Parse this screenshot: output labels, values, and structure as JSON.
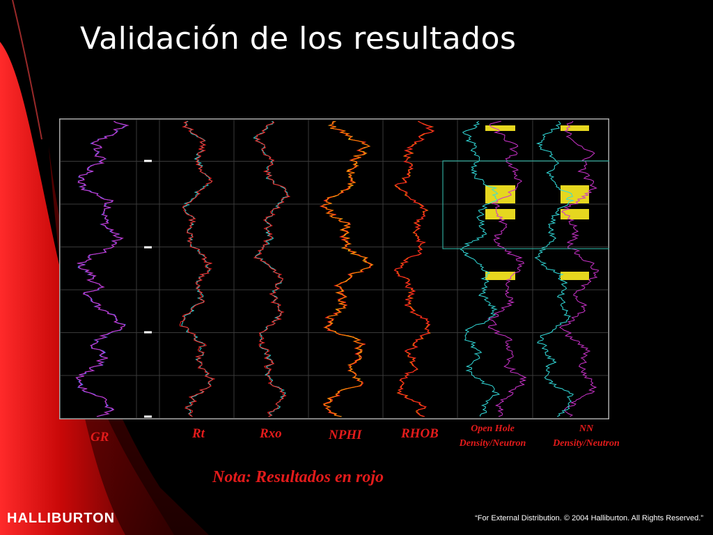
{
  "slide": {
    "title": "Validación de los resultados",
    "note": "Nota: Resultados en rojo",
    "logo_text": "HALLIBURTON",
    "copyright": "“For External Distribution. © 2004 Halliburton. All Rights Reserved.”"
  },
  "tracks": [
    {
      "id": "gr",
      "label": "GR"
    },
    {
      "id": "rt",
      "label": "Rt"
    },
    {
      "id": "rxo",
      "label": "Rxo"
    },
    {
      "id": "nphi",
      "label": "NPHI"
    },
    {
      "id": "rhob",
      "label": "RHOB"
    },
    {
      "id": "oh",
      "label_line1": "Open Hole",
      "label_line2": "Density/Neutron"
    },
    {
      "id": "nn",
      "label_line1": "NN",
      "label_line2": "Density/Neutron"
    }
  ],
  "colors": {
    "background": "#000000",
    "accent_red": "#e31b1b",
    "curve_purple": "#cc33cc",
    "curve_blue": "#5577ff",
    "curve_cyan": "#33dddd",
    "curve_red": "#ff2222",
    "curve_orange": "#ff7a00",
    "curve_yellow": "#ffee22",
    "highlight_box": "#2fa89a",
    "grid": "#3a3a3a"
  }
}
